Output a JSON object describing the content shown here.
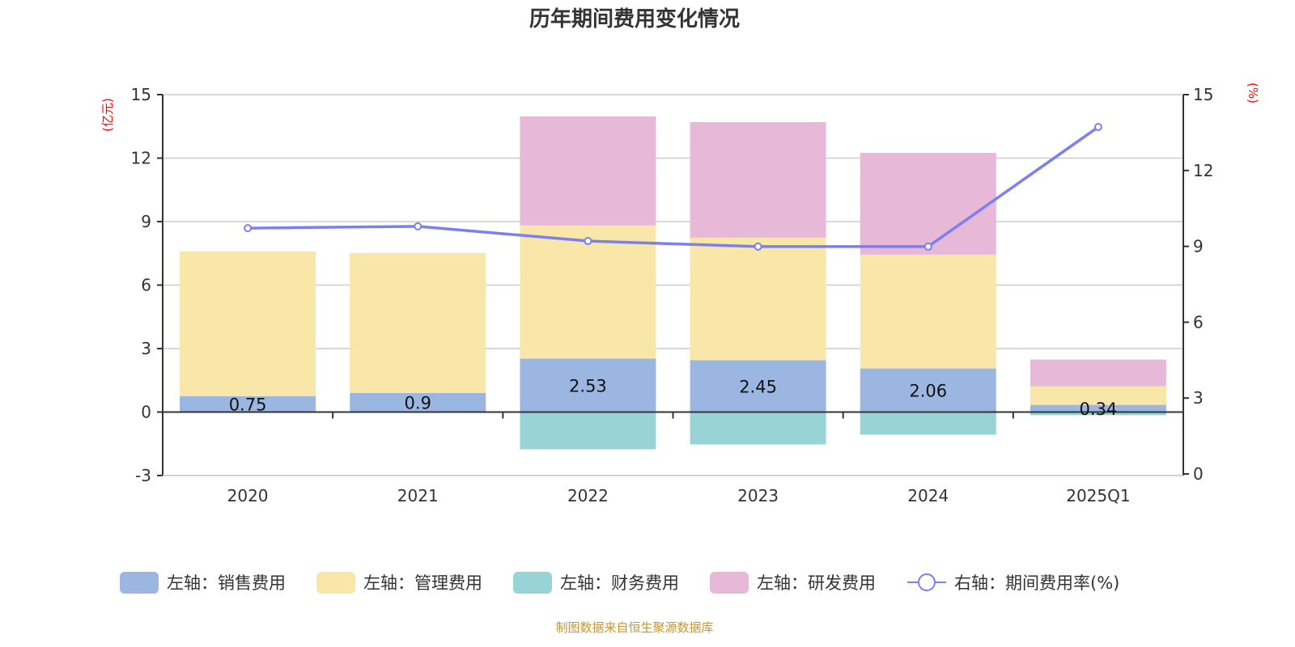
{
  "chart_data": {
    "type": "bar",
    "title": "历年期间费用变化情况",
    "categories": [
      "2020",
      "2021",
      "2022",
      "2023",
      "2024",
      "2025Q1"
    ],
    "left_axis": {
      "unit_label": "(亿元)",
      "ylim": [
        -3,
        15
      ],
      "ticks": [
        -3,
        0,
        3,
        6,
        9,
        12,
        15
      ]
    },
    "right_axis": {
      "unit_label": "(%)",
      "ylim": [
        0,
        15
      ],
      "ticks": [
        0,
        3,
        6,
        9,
        12,
        15
      ]
    },
    "grid": true,
    "stacked": true,
    "series": [
      {
        "name": "左轴：销售费用",
        "axis": "left",
        "type": "bar",
        "color": "#9bb7e1",
        "values": [
          0.75,
          0.9,
          2.53,
          2.45,
          2.06,
          0.34
        ],
        "labels": [
          "0.75",
          "0.9",
          "2.53",
          "2.45",
          "2.06",
          "0.34"
        ]
      },
      {
        "name": "左轴：管理费用",
        "axis": "left",
        "type": "bar",
        "color": "#f8e7a9",
        "values": [
          6.85,
          6.62,
          6.29,
          5.79,
          5.38,
          0.88
        ]
      },
      {
        "name": "左轴：财务费用",
        "axis": "left",
        "type": "bar",
        "color": "#98d4d5",
        "values": [
          0,
          0,
          -1.76,
          -1.53,
          -1.07,
          -0.15
        ]
      },
      {
        "name": "左轴：研发费用",
        "axis": "left",
        "type": "bar",
        "color": "#e7b8d8",
        "values": [
          0,
          0,
          5.15,
          5.46,
          4.81,
          1.26
        ]
      },
      {
        "name": "右轴：期间费用率(%)",
        "axis": "right",
        "type": "line",
        "color": "#7b7ff0",
        "values": [
          9.72,
          9.79,
          9.21,
          8.99,
          8.99,
          13.72
        ]
      }
    ],
    "legend_position": "bottom",
    "source": "制图数据来自恒生聚源数据库"
  }
}
